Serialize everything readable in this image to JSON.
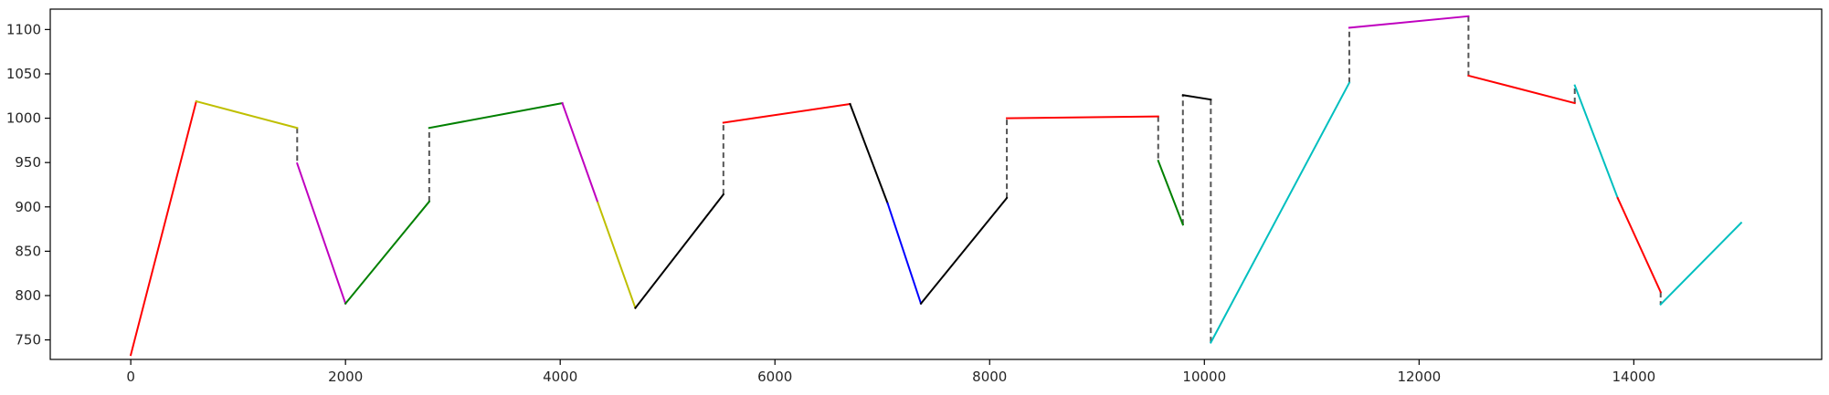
{
  "chart_data": {
    "type": "line",
    "title": "",
    "xlabel": "",
    "ylabel": "",
    "xlim": [
      -750,
      15750
    ],
    "ylim": [
      728,
      1123
    ],
    "grid": false,
    "legend": "none",
    "x_ticks": [
      0,
      2000,
      4000,
      6000,
      8000,
      10000,
      12000,
      14000
    ],
    "x_tick_labels": [
      "0",
      "2000",
      "4000",
      "6000",
      "8000",
      "10000",
      "12000",
      "14000"
    ],
    "y_ticks": [
      750,
      800,
      850,
      900,
      950,
      1000,
      1050,
      1100
    ],
    "y_tick_labels": [
      "750",
      "800",
      "850",
      "900",
      "950",
      "1000",
      "1050",
      "1100"
    ],
    "colors": {
      "red": "#ff0000",
      "yellow": "#bfbf00",
      "magenta": "#bf00bf",
      "green": "#008000",
      "black": "#000000",
      "blue": "#0000ff",
      "cyan": "#00bfbf",
      "connector": "#555555"
    },
    "segments": [
      {
        "color": "red",
        "x": [
          0,
          610
        ],
        "y": [
          733,
          1019
        ]
      },
      {
        "color": "yellow",
        "x": [
          610,
          1550
        ],
        "y": [
          1019,
          989
        ]
      },
      {
        "color": "magenta",
        "x": [
          1550,
          2000
        ],
        "y": [
          949,
          791
        ]
      },
      {
        "color": "green",
        "x": [
          2000,
          2780
        ],
        "y": [
          791,
          906
        ]
      },
      {
        "color": "green",
        "x": [
          2780,
          4020
        ],
        "y": [
          989,
          1017
        ]
      },
      {
        "color": "magenta",
        "x": [
          4020,
          4350
        ],
        "y": [
          1017,
          905
        ]
      },
      {
        "color": "yellow",
        "x": [
          4350,
          4700
        ],
        "y": [
          905,
          786
        ]
      },
      {
        "color": "black",
        "x": [
          4700,
          5520
        ],
        "y": [
          786,
          914
        ]
      },
      {
        "color": "red",
        "x": [
          5520,
          6700
        ],
        "y": [
          995,
          1016
        ]
      },
      {
        "color": "black",
        "x": [
          6700,
          7050
        ],
        "y": [
          1016,
          904
        ]
      },
      {
        "color": "blue",
        "x": [
          7050,
          7360
        ],
        "y": [
          904,
          791
        ]
      },
      {
        "color": "black",
        "x": [
          7360,
          8160
        ],
        "y": [
          791,
          910
        ]
      },
      {
        "color": "red",
        "x": [
          8160,
          9570
        ],
        "y": [
          1000,
          1002
        ]
      },
      {
        "color": "green",
        "x": [
          9570,
          9800
        ],
        "y": [
          952,
          880
        ]
      },
      {
        "color": "black",
        "x": [
          9800,
          10060
        ],
        "y": [
          1026,
          1021
        ]
      },
      {
        "color": "cyan",
        "x": [
          10060,
          11350
        ],
        "y": [
          747,
          1040
        ]
      },
      {
        "color": "magenta",
        "x": [
          11350,
          12460
        ],
        "y": [
          1102,
          1115
        ]
      },
      {
        "color": "red",
        "x": [
          12460,
          13450
        ],
        "y": [
          1048,
          1017
        ]
      },
      {
        "color": "cyan",
        "x": [
          13450,
          13850
        ],
        "y": [
          1037,
          910
        ]
      },
      {
        "color": "red",
        "x": [
          13850,
          14250
        ],
        "y": [
          910,
          804
        ]
      },
      {
        "color": "cyan",
        "x": [
          14250,
          15000
        ],
        "y": [
          790,
          882
        ]
      }
    ],
    "connectors": [
      {
        "x": 1550,
        "y": [
          989,
          949
        ]
      },
      {
        "x": 2780,
        "y": [
          906,
          989
        ]
      },
      {
        "x": 5520,
        "y": [
          914,
          995
        ]
      },
      {
        "x": 8160,
        "y": [
          910,
          1000
        ]
      },
      {
        "x": 9570,
        "y": [
          1002,
          952
        ]
      },
      {
        "x": 9800,
        "y": [
          880,
          1026
        ]
      },
      {
        "x": 10060,
        "y": [
          1021,
          747
        ]
      },
      {
        "x": 11350,
        "y": [
          1040,
          1102
        ]
      },
      {
        "x": 12460,
        "y": [
          1115,
          1048
        ]
      },
      {
        "x": 13450,
        "y": [
          1017,
          1037
        ]
      },
      {
        "x": 14250,
        "y": [
          804,
          790
        ]
      }
    ]
  }
}
